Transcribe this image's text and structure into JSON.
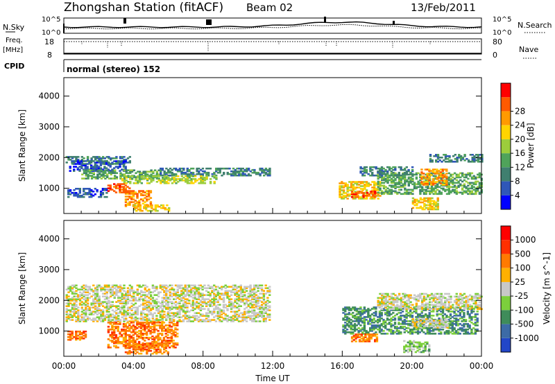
{
  "header": {
    "station": "Zhongshan Station (fitACF)",
    "beam": "Beam 02",
    "date": "13/Feb/2011"
  },
  "strip": {
    "nsky_label": "N.Sky",
    "nsky_ticks": [
      "10^5",
      "10^0"
    ],
    "nsearch_label": "N.Search",
    "nsearch_ticks": [
      "10^5",
      "10^0"
    ],
    "freq_label": "Freq.",
    "freq_unit": "[MHz]",
    "freq_ticks": [
      "18",
      "8"
    ],
    "nave_label": "Nave",
    "nave_ticks": [
      "80",
      "0"
    ],
    "cpid_label": "CPID",
    "cpid_text": "normal (stereo) 152"
  },
  "chart_data": [
    {
      "type": "heatmap",
      "name": "power",
      "ylabel": "Slant Range [km]",
      "xlabel": "",
      "x_ticks": [
        "00:00",
        "04:00",
        "08:00",
        "12:00",
        "16:00",
        "20:00",
        "00:00"
      ],
      "x_range_hours": [
        0,
        24
      ],
      "y_ticks": [
        1000,
        2000,
        3000,
        4000
      ],
      "ylim": [
        180,
        4600
      ],
      "colorbar": {
        "label": "Power [dB]",
        "ticks": [
          "4",
          "8",
          "12",
          "16",
          "20",
          "24",
          "28"
        ],
        "colors": [
          "#0000ff",
          "#2f57b8",
          "#3f7f6f",
          "#4fa35a",
          "#9ccd3c",
          "#ffd400",
          "#ff9a00",
          "#ff5a00",
          "#ff0000"
        ]
      },
      "regions": [
        {
          "t": [
            0.1,
            3.8
          ],
          "r": [
            1780,
            2050
          ],
          "level": 2
        },
        {
          "t": [
            0.3,
            3.5
          ],
          "r": [
            1550,
            1900
          ],
          "level": 1
        },
        {
          "t": [
            1.0,
            5.5
          ],
          "r": [
            1300,
            1600
          ],
          "level": 3
        },
        {
          "t": [
            5.5,
            11.8
          ],
          "r": [
            1400,
            1650
          ],
          "level": 2
        },
        {
          "t": [
            3.2,
            8.8
          ],
          "r": [
            1150,
            1400
          ],
          "level": 4
        },
        {
          "t": [
            3.5,
            5.0
          ],
          "r": [
            400,
            900
          ],
          "level": 6
        },
        {
          "t": [
            4.0,
            6.0
          ],
          "r": [
            250,
            450
          ],
          "level": 5
        },
        {
          "t": [
            0.2,
            2.5
          ],
          "r": [
            700,
            1000
          ],
          "level": 1
        },
        {
          "t": [
            2.5,
            3.8
          ],
          "r": [
            850,
            1150
          ],
          "level": 7
        },
        {
          "t": [
            15.8,
            18.2
          ],
          "r": [
            650,
            1200
          ],
          "level": 5
        },
        {
          "t": [
            16.5,
            18.0
          ],
          "r": [
            700,
            900
          ],
          "level": 7
        },
        {
          "t": [
            18.0,
            24.0
          ],
          "r": [
            800,
            1500
          ],
          "level": 3
        },
        {
          "t": [
            20.5,
            22.0
          ],
          "r": [
            1100,
            1600
          ],
          "level": 6
        },
        {
          "t": [
            21.0,
            24.0
          ],
          "r": [
            1850,
            2100
          ],
          "level": 2
        },
        {
          "t": [
            20.0,
            21.5
          ],
          "r": [
            300,
            700
          ],
          "level": 5
        },
        {
          "t": [
            17.0,
            20.0
          ],
          "r": [
            1400,
            1700
          ],
          "level": 2
        }
      ]
    },
    {
      "type": "heatmap",
      "name": "velocity",
      "ylabel": "Slant Range [km]",
      "xlabel": "Time UT",
      "x_ticks": [
        "00:00",
        "04:00",
        "08:00",
        "12:00",
        "16:00",
        "20:00",
        "00:00"
      ],
      "x_range_hours": [
        0,
        24
      ],
      "y_ticks": [
        1000,
        2000,
        3000,
        4000
      ],
      "ylim": [
        180,
        4600
      ],
      "colorbar": {
        "label": "Velocity [m s^-1]",
        "ticks": [
          "1000",
          "500",
          "100",
          "25",
          "-25",
          "-100",
          "-500",
          "-1000"
        ],
        "colors": [
          "#2246c8",
          "#3d6ba6",
          "#3f8c5a",
          "#7ccf3c",
          "#c8c8c8",
          "#ffb000",
          "#ff7a00",
          "#ff3000",
          "#ff0000"
        ]
      },
      "regions": [
        {
          "t": [
            0.1,
            11.8
          ],
          "r": [
            1300,
            2500
          ],
          "level": 4
        },
        {
          "t": [
            2.5,
            6.5
          ],
          "r": [
            450,
            1300
          ],
          "level": 6
        },
        {
          "t": [
            3.5,
            6.0
          ],
          "r": [
            250,
            600
          ],
          "level": 6
        },
        {
          "t": [
            0.2,
            1.2
          ],
          "r": [
            700,
            1000
          ],
          "level": 6
        },
        {
          "t": [
            16.0,
            23.8
          ],
          "r": [
            900,
            1800
          ],
          "level": 2
        },
        {
          "t": [
            18.0,
            24.0
          ],
          "r": [
            1700,
            2200
          ],
          "level": 4
        },
        {
          "t": [
            16.5,
            18.0
          ],
          "r": [
            650,
            900
          ],
          "level": 6
        },
        {
          "t": [
            20.0,
            22.0
          ],
          "r": [
            1100,
            1400
          ],
          "level": 4
        },
        {
          "t": [
            19.5,
            21.0
          ],
          "r": [
            300,
            700
          ],
          "level": 3
        }
      ]
    }
  ]
}
